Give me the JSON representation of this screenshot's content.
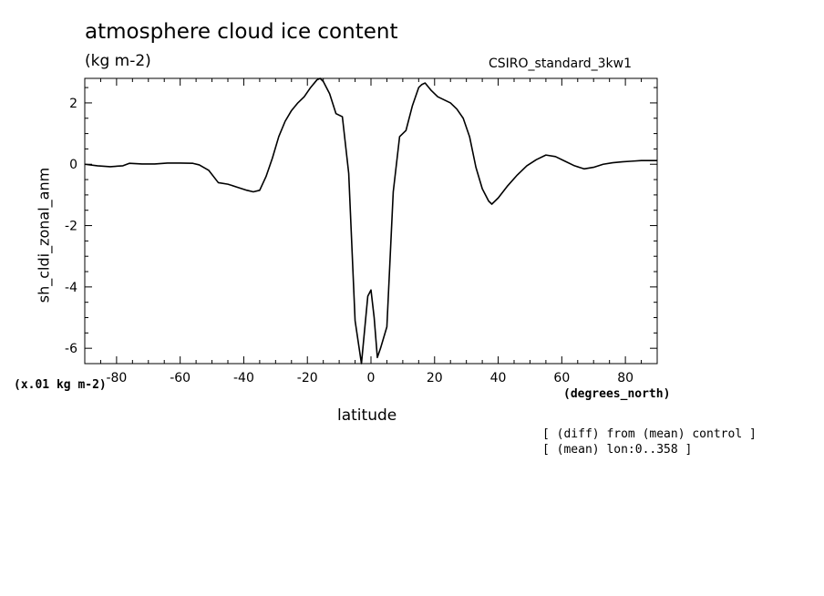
{
  "header": {
    "title": "atmosphere cloud ice content",
    "units": "(kg m-2)",
    "dataset": "CSIRO_standard_3kw1"
  },
  "footer": {
    "scale_note": "(x.01 kg m-2)",
    "x_units": "(degrees_north)",
    "note_line1": "[ (diff) from (mean) control ]",
    "note_line2": "[ (mean) lon:0..358 ]"
  },
  "chart_data": {
    "type": "line",
    "title": "atmosphere cloud ice content",
    "xlabel": "latitude",
    "ylabel": "sh_cldi_zonal_anm",
    "xlim": [
      -90,
      90
    ],
    "ylim": [
      -6.5,
      2.8
    ],
    "x_ticks": [
      -80,
      -60,
      -40,
      -20,
      0,
      20,
      40,
      60,
      80
    ],
    "x_tick_labels": [
      "-80",
      "-60",
      "-40",
      "-20",
      "0",
      "20",
      "40",
      "60",
      "80"
    ],
    "y_ticks": [
      -6,
      -4,
      -2,
      0,
      2
    ],
    "y_tick_labels": [
      "-6",
      "-4",
      "-2",
      "0",
      "2"
    ],
    "grid": false,
    "line_color": "#000000",
    "series": [
      {
        "x": [
          -90,
          -86,
          -82,
          -78,
          -76,
          -72,
          -68,
          -64,
          -60,
          -56,
          -54,
          -51,
          -48,
          -45,
          -42,
          -39,
          -37,
          -35,
          -33,
          -31,
          -29,
          -27,
          -25,
          -23,
          -21,
          -19,
          -17,
          -16,
          -15,
          -13,
          -11,
          -9,
          -7,
          -5,
          -3,
          -1,
          0,
          1,
          2,
          3,
          5,
          7,
          9,
          11,
          13,
          15,
          16,
          17,
          19,
          21,
          23,
          25,
          27,
          29,
          31,
          33,
          35,
          37,
          38,
          40,
          43,
          46,
          49,
          52,
          55,
          58,
          61,
          64,
          67,
          70,
          73,
          76,
          79,
          82,
          85,
          88,
          90
        ],
        "y": [
          0.0,
          -0.05,
          -0.08,
          -0.05,
          0.03,
          0.01,
          0.01,
          0.04,
          0.04,
          0.03,
          -0.02,
          -0.2,
          -0.6,
          -0.65,
          -0.75,
          -0.85,
          -0.9,
          -0.85,
          -0.4,
          0.2,
          0.9,
          1.4,
          1.75,
          2.0,
          2.2,
          2.5,
          2.75,
          2.8,
          2.7,
          2.3,
          1.65,
          1.55,
          -0.3,
          -5.1,
          -6.5,
          -4.3,
          -4.1,
          -5.0,
          -6.3,
          -6.0,
          -5.3,
          -0.9,
          0.9,
          1.1,
          1.9,
          2.5,
          2.6,
          2.65,
          2.4,
          2.2,
          2.1,
          2.0,
          1.8,
          1.5,
          0.9,
          -0.1,
          -0.8,
          -1.2,
          -1.3,
          -1.1,
          -0.7,
          -0.35,
          -0.05,
          0.15,
          0.3,
          0.25,
          0.1,
          -0.05,
          -0.15,
          -0.1,
          0.0,
          0.05,
          0.08,
          0.1,
          0.12,
          0.12,
          0.12
        ]
      }
    ]
  }
}
